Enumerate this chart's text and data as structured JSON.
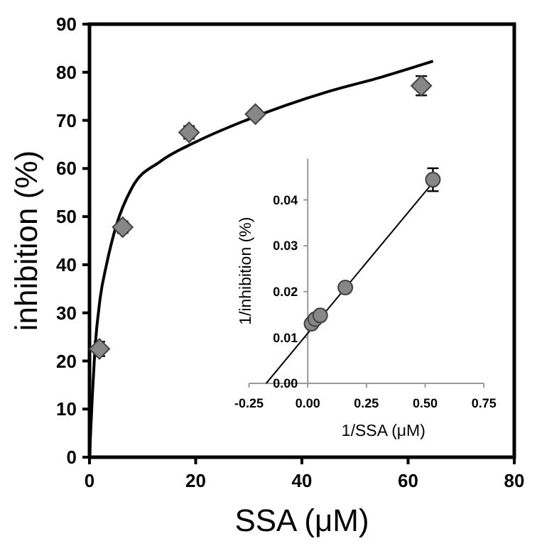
{
  "chart_data": [
    {
      "type": "scatter",
      "xlabel": "SSA (μM)",
      "ylabel": "inhibition (%)",
      "xlim": [
        0,
        80
      ],
      "xticks": [
        0,
        20,
        40,
        60,
        80
      ],
      "ylim": [
        0,
        90
      ],
      "yticks": [
        0,
        10,
        20,
        30,
        40,
        50,
        60,
        70,
        80,
        90
      ],
      "grid": false,
      "series": [
        {
          "type": "scatter",
          "marker": "diamond",
          "color": "#878787",
          "x": [
            1.875,
            6.25,
            18.75,
            31.25,
            62.5
          ],
          "values": [
            22.5,
            47.8,
            67.5,
            71.3,
            77.2
          ],
          "errors": [
            1.5,
            1.2,
            1.3,
            1.0,
            2.0
          ]
        },
        {
          "type": "line",
          "marker": "none",
          "line_style": "solid",
          "color": "#000000",
          "x": [
            0,
            0.5,
            1,
            2,
            3.2,
            5,
            8,
            13.4,
            20,
            29.4,
            45,
            55,
            64.7
          ],
          "values": [
            0,
            12,
            22,
            33,
            40,
            48,
            56,
            61.5,
            65.5,
            70,
            76,
            79,
            82.3
          ]
        }
      ]
    },
    {
      "type": "scatter",
      "xlabel": "1/SSA (μM)",
      "ylabel": "1/inhibition  (%)",
      "xlim": [
        -0.25,
        0.75
      ],
      "xticks": [
        {
          "value": -0.25,
          "label": "-0.25"
        },
        {
          "value": 0,
          "label": "0.00"
        },
        {
          "value": 0.25,
          "label": "0.25"
        },
        {
          "value": 0.5,
          "label": "0.50"
        },
        {
          "value": 0.75,
          "label": "0.75"
        }
      ],
      "ylim": [
        0,
        0.049
      ],
      "yticks": [
        {
          "value": 0,
          "label": "0.00"
        },
        {
          "value": 0.01,
          "label": "0.01"
        },
        {
          "value": 0.02,
          "label": "0.02"
        },
        {
          "value": 0.03,
          "label": "0.03"
        },
        {
          "value": 0.04,
          "label": "0.04"
        }
      ],
      "grid": false,
      "series": [
        {
          "type": "scatter",
          "marker": "circle",
          "color": "#878787",
          "x": [
            0.016,
            0.032,
            0.053,
            0.16,
            0.533
          ],
          "values": [
            0.013,
            0.014,
            0.0148,
            0.0209,
            0.0444
          ],
          "errors": [
            0.0004,
            0.0004,
            0.0005,
            0.0005,
            0.0025
          ]
        },
        {
          "type": "line",
          "marker": "none",
          "line_style": "solid",
          "color": "#000000",
          "x": [
            -0.177,
            0.53
          ],
          "values": [
            0,
            0.0436
          ]
        }
      ]
    }
  ]
}
